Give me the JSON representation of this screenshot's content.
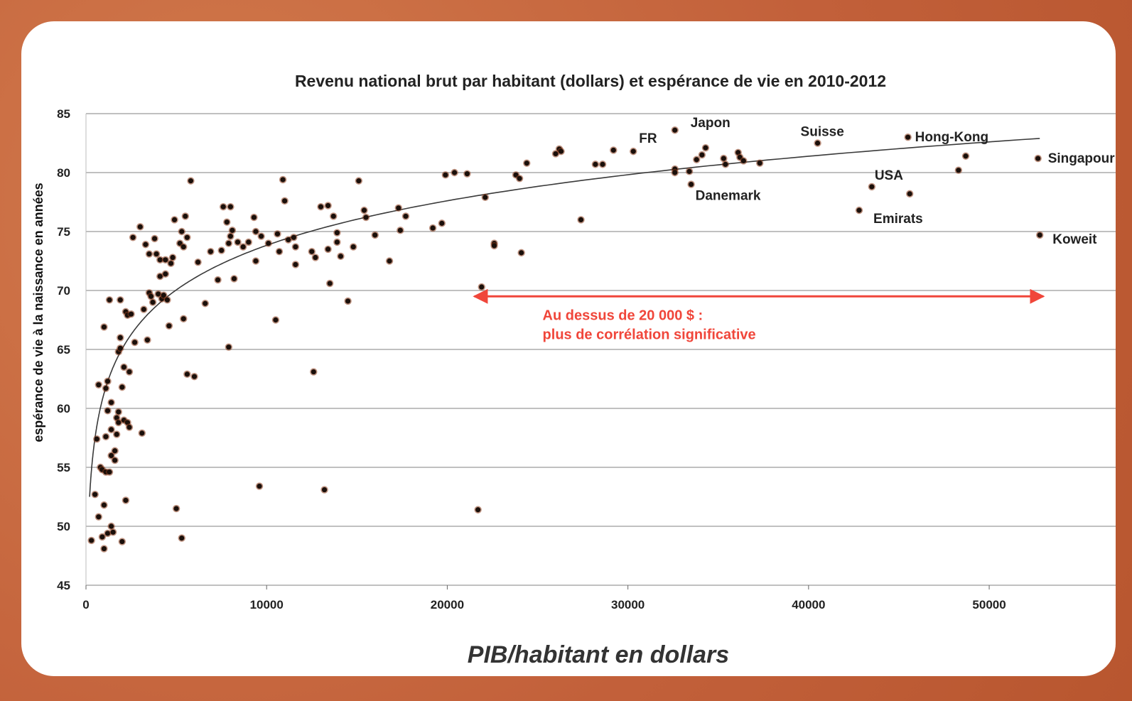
{
  "chart_data": {
    "type": "scatter",
    "title": "Revenu national brut par habitant (dollars)  et espérance de vie en 2010-2012",
    "xlabel": "PIB/habitant en dollars",
    "ylabel": "espérance de vie à la naissance en années",
    "xlim": [
      0,
      57000
    ],
    "ylim": [
      45,
      85
    ],
    "x_ticks": [
      0,
      10000,
      20000,
      30000,
      40000,
      50000
    ],
    "y_ticks": [
      45,
      50,
      55,
      60,
      65,
      70,
      75,
      80,
      85
    ],
    "grid": "horizontal",
    "colors": {
      "point": "#1a0f0a",
      "point_halo": "#8a3a1a",
      "trend": "#333333",
      "note": "#f0463a"
    },
    "points": [
      [
        300,
        48.8
      ],
      [
        500,
        52.7
      ],
      [
        600,
        57.4
      ],
      [
        700,
        62
      ],
      [
        700,
        50.8
      ],
      [
        800,
        55
      ],
      [
        900,
        54.8
      ],
      [
        900,
        49.1
      ],
      [
        1000,
        51.8
      ],
      [
        1000,
        48.1
      ],
      [
        1000,
        66.9
      ],
      [
        1100,
        61.7
      ],
      [
        1100,
        57.6
      ],
      [
        1100,
        54.6
      ],
      [
        1200,
        62.3
      ],
      [
        1200,
        59.8
      ],
      [
        1200,
        49.4
      ],
      [
        1300,
        69.2
      ],
      [
        1300,
        54.6
      ],
      [
        1400,
        60.5
      ],
      [
        1400,
        58.2
      ],
      [
        1400,
        56
      ],
      [
        1400,
        50
      ],
      [
        1500,
        49.5
      ],
      [
        1600,
        56.4
      ],
      [
        1600,
        55.6
      ],
      [
        1700,
        59.2
      ],
      [
        1700,
        57.8
      ],
      [
        1800,
        64.8
      ],
      [
        1800,
        59.7
      ],
      [
        1800,
        58.8
      ],
      [
        1900,
        69.2
      ],
      [
        1900,
        66
      ],
      [
        1900,
        65.1
      ],
      [
        2000,
        61.8
      ],
      [
        2000,
        48.7
      ],
      [
        2100,
        63.5
      ],
      [
        2100,
        59
      ],
      [
        2200,
        68.2
      ],
      [
        2200,
        52.2
      ],
      [
        2300,
        67.9
      ],
      [
        2300,
        58.8
      ],
      [
        2400,
        63.1
      ],
      [
        2400,
        58.4
      ],
      [
        2500,
        68
      ],
      [
        2600,
        74.5
      ],
      [
        2700,
        65.6
      ],
      [
        3000,
        75.4
      ],
      [
        3100,
        57.9
      ],
      [
        3200,
        68.4
      ],
      [
        3300,
        73.9
      ],
      [
        3400,
        65.8
      ],
      [
        3500,
        73.1
      ],
      [
        3500,
        69.8
      ],
      [
        3600,
        69.5
      ],
      [
        3700,
        69
      ],
      [
        3800,
        74.4
      ],
      [
        3900,
        73.1
      ],
      [
        4000,
        69.7
      ],
      [
        4100,
        72.6
      ],
      [
        4100,
        71.2
      ],
      [
        4200,
        69.3
      ],
      [
        4300,
        69.6
      ],
      [
        4400,
        72.6
      ],
      [
        4400,
        71.4
      ],
      [
        4500,
        69.2
      ],
      [
        4600,
        67
      ],
      [
        4700,
        72.3
      ],
      [
        4800,
        72.8
      ],
      [
        4900,
        76
      ],
      [
        5000,
        51.5
      ],
      [
        5200,
        74
      ],
      [
        5300,
        75
      ],
      [
        5300,
        49
      ],
      [
        5400,
        73.7
      ],
      [
        5400,
        67.6
      ],
      [
        5500,
        76.3
      ],
      [
        5600,
        74.5
      ],
      [
        5600,
        62.9
      ],
      [
        5800,
        79.3
      ],
      [
        6000,
        62.7
      ],
      [
        6200,
        72.4
      ],
      [
        6600,
        68.9
      ],
      [
        6900,
        73.3
      ],
      [
        7300,
        70.9
      ],
      [
        7500,
        73.4
      ],
      [
        7600,
        77.1
      ],
      [
        7800,
        75.8
      ],
      [
        7900,
        74
      ],
      [
        7900,
        65.2
      ],
      [
        8000,
        77.1
      ],
      [
        8000,
        74.6
      ],
      [
        8100,
        75.1
      ],
      [
        8200,
        71
      ],
      [
        8400,
        74.1
      ],
      [
        8700,
        73.7
      ],
      [
        9000,
        74.1
      ],
      [
        9300,
        76.2
      ],
      [
        9400,
        75
      ],
      [
        9400,
        72.5
      ],
      [
        9600,
        53.4
      ],
      [
        9700,
        74.6
      ],
      [
        10100,
        74
      ],
      [
        10500,
        67.5
      ],
      [
        10600,
        74.8
      ],
      [
        10700,
        73.3
      ],
      [
        10900,
        79.4
      ],
      [
        11000,
        77.6
      ],
      [
        11200,
        74.3
      ],
      [
        11500,
        74.5
      ],
      [
        11600,
        73.7
      ],
      [
        11600,
        72.2
      ],
      [
        12500,
        73.3
      ],
      [
        12600,
        63.1
      ],
      [
        12700,
        72.8
      ],
      [
        13000,
        77.1
      ],
      [
        13200,
        53.1
      ],
      [
        13400,
        77.2
      ],
      [
        13400,
        73.5
      ],
      [
        13500,
        70.6
      ],
      [
        13700,
        76.3
      ],
      [
        13900,
        74.9
      ],
      [
        13900,
        74.1
      ],
      [
        14100,
        72.9
      ],
      [
        14500,
        69.1
      ],
      [
        14800,
        73.7
      ],
      [
        15100,
        79.3
      ],
      [
        15400,
        76.8
      ],
      [
        15500,
        76.2
      ],
      [
        16000,
        74.7
      ],
      [
        16800,
        72.5
      ],
      [
        17300,
        77
      ],
      [
        17400,
        75.1
      ],
      [
        17700,
        76.3
      ],
      [
        19200,
        75.3
      ],
      [
        19700,
        75.7
      ],
      [
        19900,
        79.8
      ],
      [
        20400,
        80
      ],
      [
        21100,
        79.9
      ],
      [
        21700,
        51.4
      ],
      [
        21900,
        70.3
      ],
      [
        22100,
        77.9
      ],
      [
        22600,
        74
      ],
      [
        22600,
        73.8
      ],
      [
        23800,
        79.8
      ],
      [
        24000,
        79.5
      ],
      [
        24100,
        73.2
      ],
      [
        24400,
        80.8
      ],
      [
        26000,
        81.6
      ],
      [
        26200,
        82
      ],
      [
        26300,
        81.8
      ],
      [
        27400,
        76
      ],
      [
        28200,
        80.7
      ],
      [
        28600,
        80.7
      ],
      [
        29200,
        81.9
      ],
      [
        30300,
        81.8
      ],
      [
        32600,
        83.6
      ],
      [
        32600,
        80.3
      ],
      [
        32600,
        80
      ],
      [
        33400,
        80.1
      ],
      [
        33500,
        79
      ],
      [
        33800,
        81.1
      ],
      [
        34100,
        81.5
      ],
      [
        34300,
        82.1
      ],
      [
        35300,
        81.2
      ],
      [
        35400,
        80.7
      ],
      [
        36100,
        81.7
      ],
      [
        36200,
        81.3
      ],
      [
        36400,
        81
      ],
      [
        37300,
        80.8
      ],
      [
        40500,
        82.5
      ],
      [
        42800,
        76.8
      ],
      [
        43500,
        78.8
      ],
      [
        45500,
        83
      ],
      [
        45600,
        78.2
      ],
      [
        48300,
        80.2
      ],
      [
        48700,
        81.4
      ],
      [
        52700,
        81.2
      ],
      [
        52800,
        74.7
      ]
    ],
    "trend": {
      "type": "logarithmic",
      "from": [
        200,
        52.5
      ],
      "to": [
        52800,
        82.9
      ]
    },
    "annotations": [
      {
        "text": "FR",
        "x": 30300,
        "y": 81.8
      },
      {
        "text": "Japon",
        "x": 32600,
        "y": 83.6
      },
      {
        "text": "Suisse",
        "x": 40500,
        "y": 82.5
      },
      {
        "text": "Hong-Kong",
        "x": 45500,
        "y": 83
      },
      {
        "text": "Singapour",
        "x": 52700,
        "y": 81.2
      },
      {
        "text": "USA",
        "x": 43500,
        "y": 78.8
      },
      {
        "text": "Danemark",
        "x": 33500,
        "y": 79
      },
      {
        "text": "Emirats",
        "x": 42800,
        "y": 76.8
      },
      {
        "text": "Koweit",
        "x": 52800,
        "y": 74.7
      }
    ],
    "range_note": {
      "x_from": 21500,
      "x_to": 53000,
      "y": 69.5,
      "lines": [
        "Au dessus de 20 000 $ :",
        "plus de corrélation significative"
      ]
    }
  }
}
